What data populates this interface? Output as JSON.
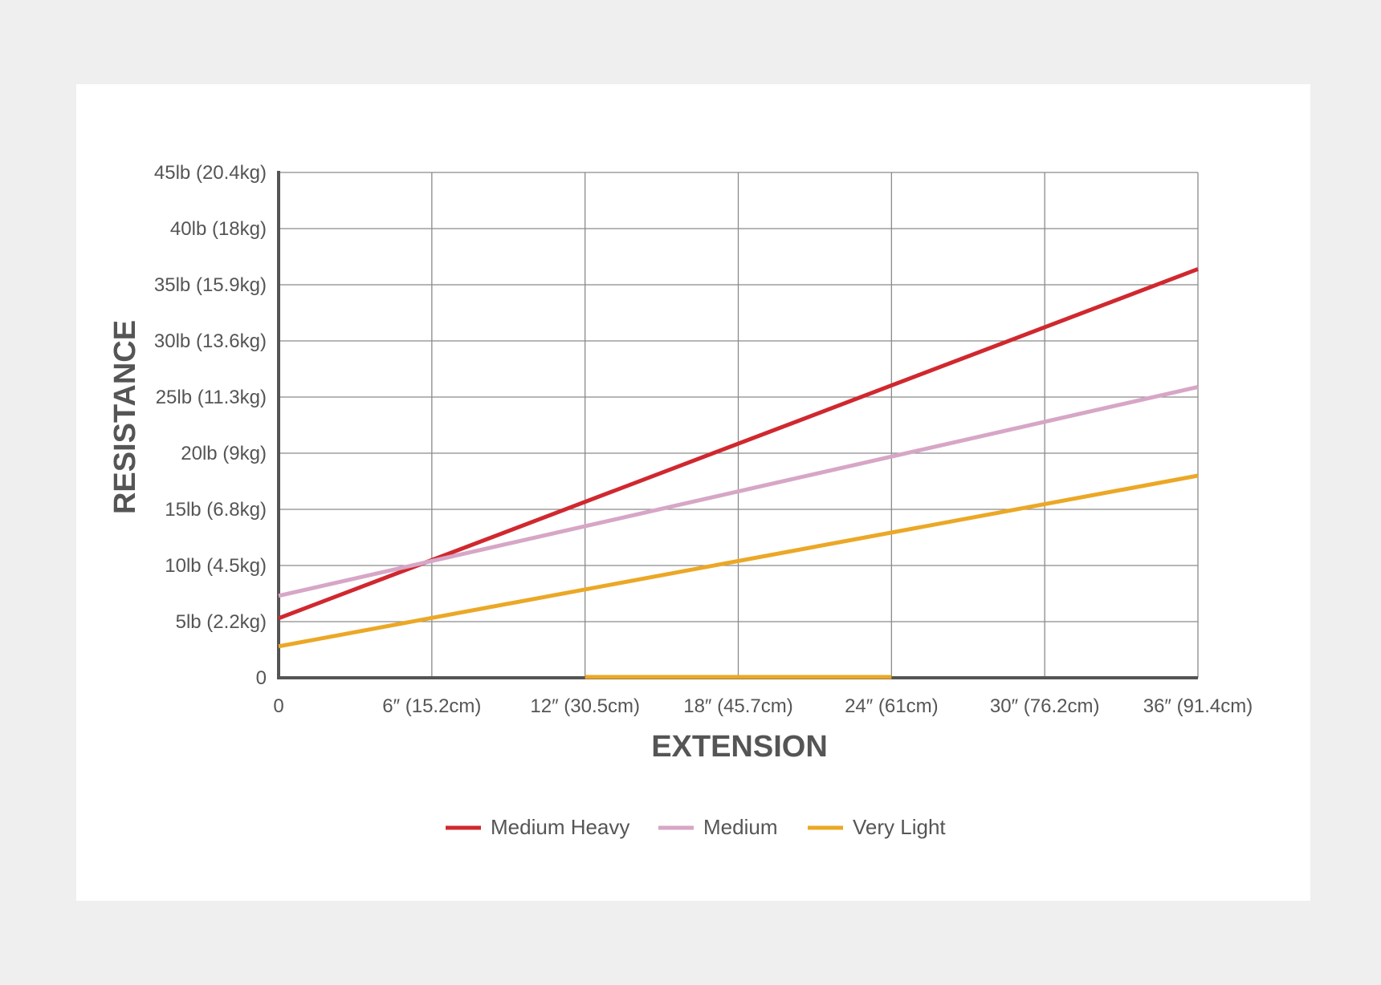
{
  "chart_data": {
    "type": "line",
    "title": "",
    "xlabel": "EXTENSION",
    "ylabel": "RESISTANCE",
    "xlim": [
      0,
      36
    ],
    "ylim": [
      0,
      45
    ],
    "x_ticks": [
      0,
      6,
      12,
      18,
      24,
      30,
      36
    ],
    "x_tick_labels": [
      "0",
      "6″ (15.2cm)",
      "12″ (30.5cm)",
      "18″ (45.7cm)",
      "24″ (61cm)",
      "30″ (76.2cm)",
      "36″ (91.4cm)"
    ],
    "y_ticks": [
      0,
      5,
      10,
      15,
      20,
      25,
      30,
      35,
      40,
      45
    ],
    "y_tick_labels": [
      "0",
      "5lb (2.2kg)",
      "10lb (4.5kg)",
      "15lb (6.8kg)",
      "20lb (9kg)",
      "25lb (11.3kg)",
      "30lb (13.6kg)",
      "35lb (15.9kg)",
      "40lb (18kg)",
      "45lb (20.4kg)"
    ],
    "grid": true,
    "legend_position": "bottom",
    "series": [
      {
        "name": "Medium Heavy",
        "color": "#d0282f",
        "x": [
          0,
          36
        ],
        "y": [
          5.3,
          36.4
        ]
      },
      {
        "name": "Medium",
        "color": "#d7a6c6",
        "x": [
          0,
          36
        ],
        "y": [
          7.3,
          25.9
        ]
      },
      {
        "name": "Very Light",
        "color": "#eba826",
        "x": [
          0,
          36
        ],
        "y": [
          2.8,
          18.0
        ]
      }
    ],
    "annotations": [
      {
        "type": "segment",
        "color": "#eba826",
        "x": [
          12,
          24
        ],
        "y": [
          0,
          0
        ]
      }
    ]
  }
}
